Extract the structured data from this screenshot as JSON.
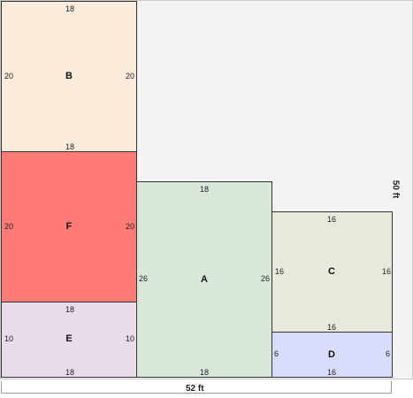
{
  "scale": {
    "width": "52 ft",
    "height": "50 ft"
  },
  "rooms": {
    "B": {
      "name": "B",
      "color": "#faebdb",
      "top": "18",
      "bottom": "18",
      "left": "20",
      "right": "20"
    },
    "F": {
      "name": "F",
      "color": "#ff7b77",
      "left": "20",
      "right": "20"
    },
    "E": {
      "name": "E",
      "color": "#e8dbea",
      "top": "18",
      "bottom": "18",
      "left": "10",
      "right": "10"
    },
    "A": {
      "name": "A",
      "color": "#d9e7db",
      "top": "18",
      "bottom": "18",
      "left": "26",
      "right": "26"
    },
    "C": {
      "name": "C",
      "color": "#e8e8dc",
      "top": "16",
      "bottom": "16",
      "left": "16",
      "right": "16"
    },
    "D": {
      "name": "D",
      "color": "#dadcfb",
      "bottom": "16",
      "left": "6",
      "right": "6"
    }
  }
}
